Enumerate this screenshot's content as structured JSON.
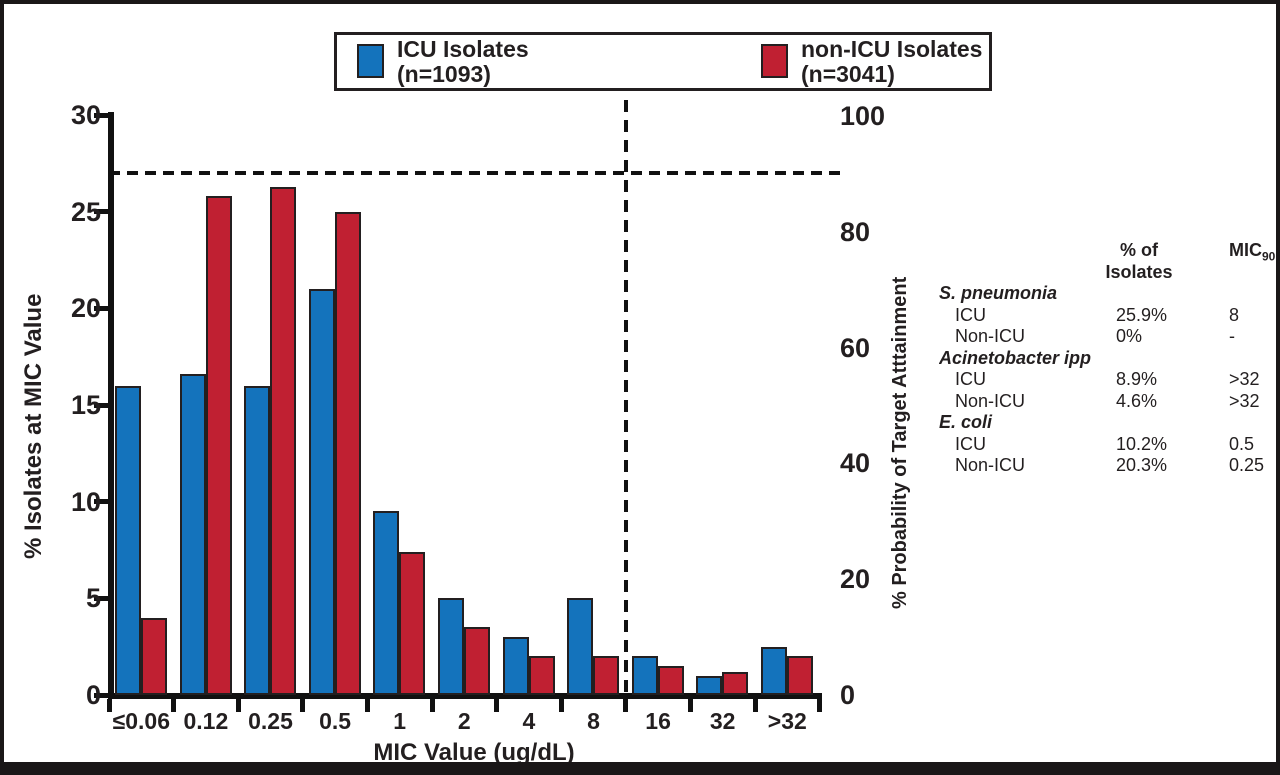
{
  "legend": {
    "items": [
      {
        "label": "ICU Isolates",
        "n": "(n=1093)",
        "color": "#1473bc"
      },
      {
        "label": "non-ICU Isolates",
        "n": "(n=3041)",
        "color": "#c02032"
      }
    ]
  },
  "chart_data": {
    "type": "bar",
    "categories": [
      "≤0.06",
      "0.12",
      "0.25",
      "0.5",
      "1",
      "2",
      "4",
      "8",
      "16",
      "32",
      ">32"
    ],
    "series": [
      {
        "name": "ICU Isolates (n=1093)",
        "color": "#1473bc",
        "values": [
          16,
          16.6,
          16,
          21,
          9.5,
          5,
          3,
          5,
          2,
          1,
          2.5
        ]
      },
      {
        "name": "non-ICU Isolates (n=3041)",
        "color": "#c02032",
        "values": [
          4,
          25.8,
          26.3,
          25,
          7.4,
          3.5,
          2,
          2,
          1.5,
          1.2,
          2
        ]
      }
    ],
    "xlabel": "MIC Value (ug/dL)",
    "left_axis": {
      "label": "% Isolates at MIC Value",
      "ticks": [
        0,
        5,
        10,
        15,
        20,
        25,
        30
      ],
      "range": [
        0,
        30
      ]
    },
    "right_axis": {
      "label": "% Probability of Target Atttainment",
      "ticks": [
        0,
        20,
        40,
        60,
        80,
        100
      ],
      "range": [
        0,
        100
      ]
    },
    "grid": "off",
    "legend_position": "top",
    "annotations": {
      "h_dashed_line_left_axis_value": 27,
      "h_dashed_line_right_axis_value": 90,
      "v_dashed_line_after_category": "8"
    }
  },
  "table": {
    "header_pct_line1": "% of",
    "header_pct_line2": "Isolates",
    "header_mic": "MIC",
    "header_mic_sub": "90",
    "groups": [
      {
        "name": "S. pneumonia",
        "rows": [
          {
            "label": "ICU",
            "pct": "25.9%",
            "mic": "8"
          },
          {
            "label": "Non-ICU",
            "pct": "0%",
            "mic": "-"
          }
        ]
      },
      {
        "name": "Acinetobacter ipp",
        "rows": [
          {
            "label": "ICU",
            "pct": "8.9%",
            "mic": ">32"
          },
          {
            "label": "Non-ICU",
            "pct": "4.6%",
            "mic": ">32"
          }
        ]
      },
      {
        "name": "E. coli",
        "rows": [
          {
            "label": "ICU",
            "pct": "10.2%",
            "mic": "0.5"
          },
          {
            "label": "Non-ICU",
            "pct": "20.3%",
            "mic": "0.25"
          }
        ]
      }
    ]
  }
}
